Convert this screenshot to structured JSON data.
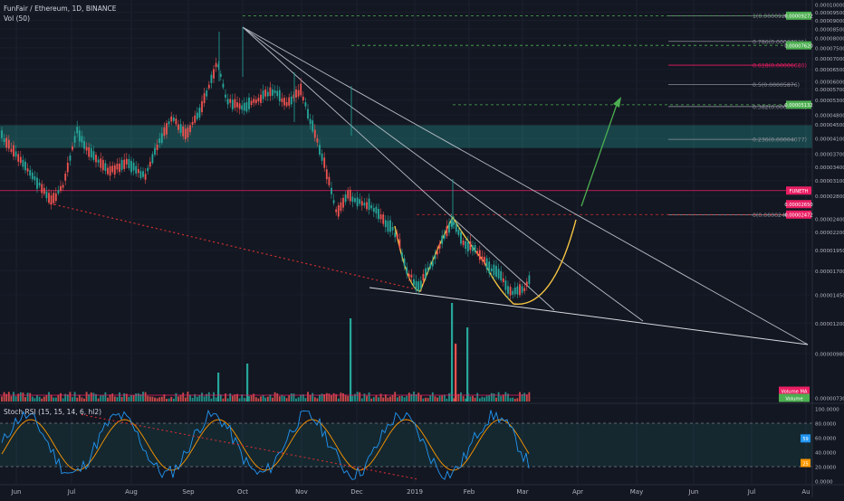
{
  "header": {
    "symbol_line": "FunFair / Ethereum, 1D, BINANCE",
    "volume_line": "Vol (50)",
    "rsi_line": "Stoch RSI (15, 15, 14, 6, hl2)"
  },
  "chart_data": {
    "type": "candlestick",
    "x_axis_labels": [
      "Jun",
      "Jul",
      "Aug",
      "Sep",
      "Oct",
      "Nov",
      "Dec",
      "2019",
      "Feb",
      "Mar",
      "Apr",
      "May",
      "Jun",
      "Jul",
      "Au"
    ],
    "price_axis_labels": [
      "0.00010000",
      "0.00009500",
      "0.00009000",
      "0.00008500",
      "0.00008000",
      "0.00007500",
      "0.00007000",
      "0.00006500",
      "0.00006000",
      "0.00005700",
      "0.00005300",
      "0.00004800",
      "0.00004500",
      "0.00004100",
      "0.00003700",
      "0.00003400",
      "0.00003100",
      "0.00002800",
      "0.00002400",
      "0.00002200",
      "0.00001950",
      "0.00001700",
      "0.00001450",
      "0.00001200",
      "0.00000980",
      "0.00000730"
    ],
    "price_range": [
      7.3e-06,
      0.0001
    ],
    "price_scale": "log",
    "fib_levels": [
      {
        "label": "1(0.00009284)",
        "value": 9.284e-05
      },
      {
        "label": "0.786(0.00007825)",
        "value": 7.825e-05
      },
      {
        "label": "0.618(0.00006680)",
        "value": 6.68e-05
      },
      {
        "label": "0.5(0.00005876)",
        "value": 5.876e-05
      },
      {
        "label": "0.382(0.00005072)",
        "value": 5.072e-05
      },
      {
        "label": "0.236(0.00004077)",
        "value": 4.077e-05
      },
      {
        "label": "0(0.00002468)",
        "value": 2.468e-05
      }
    ],
    "axis_badges": [
      {
        "text": "0.00009272",
        "color": "#4caf50"
      },
      {
        "text": "0.00007620",
        "color": "#4caf50"
      },
      {
        "text": "0.00005132",
        "color": "#4caf50"
      },
      {
        "text": "FUNETH",
        "color": "#e91e63"
      },
      {
        "text": "0.00002650",
        "color": "#e91e63"
      },
      {
        "text": "0.00002472",
        "color": "#e91e63"
      },
      {
        "text": "Volume MA",
        "color": "#e91e63"
      },
      {
        "text": "Volume",
        "color": "#4caf50"
      }
    ],
    "rsi_axis_labels": [
      "100.0000",
      "80.0000",
      "60.0000",
      "40.0000",
      "20.0000",
      "0.0000"
    ],
    "rsi_badges": [
      {
        "text": "59",
        "color": "#2196f3"
      },
      {
        "text": "25",
        "color": "#ff9800"
      }
    ],
    "colors": {
      "up": "#26a69a",
      "down": "#ef5350",
      "fib_line": "#8a8d96",
      "fib_618": "#e91e63",
      "target": "#4caf50",
      "support_zone": "#26a69a",
      "cup": "#f5c542",
      "arrow": "#4caf50",
      "trend": "#d32f2f",
      "rsi_k": "#2196f3",
      "rsi_d": "#ff9800"
    }
  }
}
